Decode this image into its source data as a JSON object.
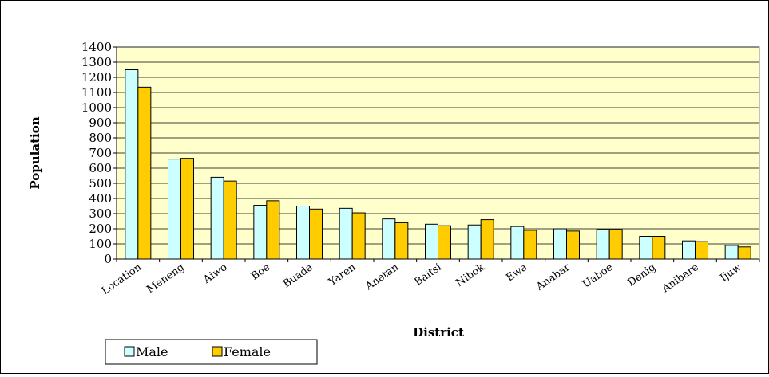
{
  "chart_data": {
    "type": "bar",
    "xlabel": "District",
    "ylabel": "Population",
    "ylim": [
      0,
      1400
    ],
    "ytick_step": 100,
    "grid": true,
    "legend_position": "bottom-left",
    "categories": [
      "Location",
      "Meneng",
      "Aiwo",
      "Boe",
      "Buada",
      "Yaren",
      "Anetan",
      "Baitsi",
      "Nibok",
      "Ewa",
      "Anabar",
      "Uaboe",
      "Denig",
      "Anibare",
      "Ijuw"
    ],
    "series": [
      {
        "name": "Male",
        "color": "#CCFFFF",
        "values": [
          1250,
          660,
          540,
          355,
          350,
          335,
          265,
          230,
          225,
          215,
          200,
          195,
          150,
          120,
          90
        ]
      },
      {
        "name": "Female",
        "color": "#FFCC00",
        "values": [
          1135,
          665,
          515,
          385,
          330,
          305,
          240,
          220,
          260,
          190,
          185,
          195,
          150,
          115,
          80
        ]
      }
    ],
    "plot_background": "#FFFFCC"
  }
}
